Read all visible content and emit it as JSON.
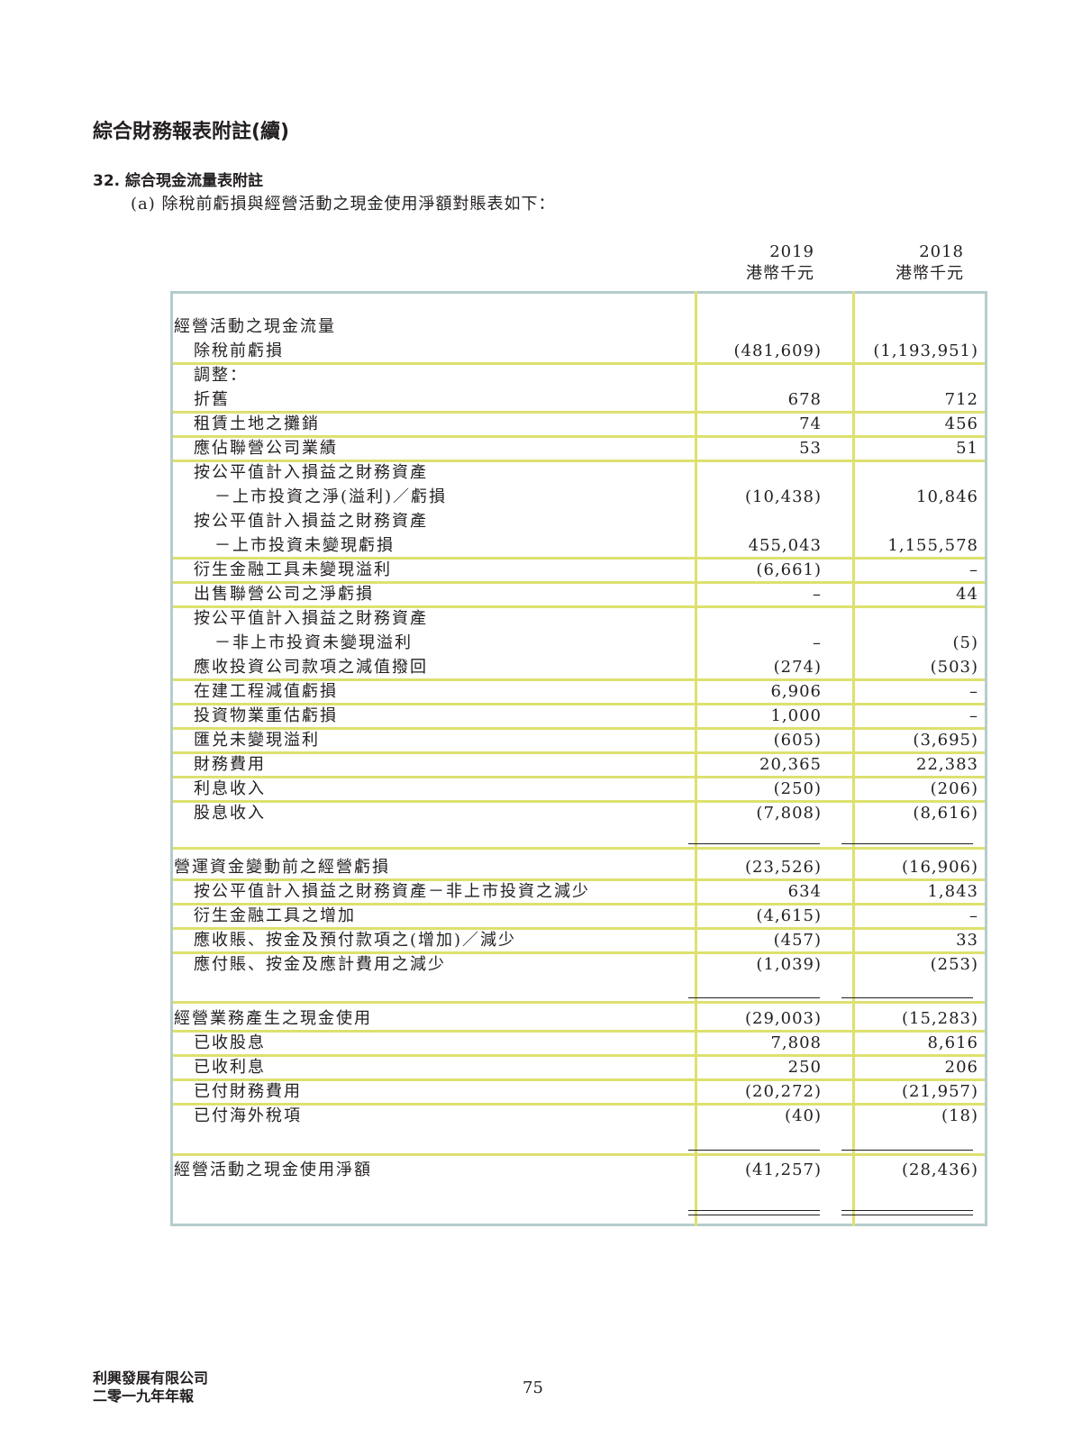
{
  "header": {
    "title": "綜合財務報表附註(續)",
    "section": "32. 綜合現金流量表附註",
    "subsection": "(a) 除稅前虧損與經營活動之現金使用淨額對賬表如下："
  },
  "columns": [
    {
      "year": "2019",
      "unit": "港幣千元"
    },
    {
      "year": "2018",
      "unit": "港幣千元"
    }
  ],
  "rows": [
    {
      "label": "經營活動之現金流量",
      "v2019": "",
      "v2018": ""
    },
    {
      "label": "除稅前虧損",
      "v2019": "(481,609)",
      "v2018": "(1,193,951)"
    },
    {
      "label": "調整：",
      "v2019": "",
      "v2018": ""
    },
    {
      "label": "折舊",
      "v2019": "678",
      "v2018": "712"
    },
    {
      "label": "租賃土地之攤銷",
      "v2019": "74",
      "v2018": "456"
    },
    {
      "label": "應佔聯營公司業績",
      "v2019": "53",
      "v2018": "51"
    },
    {
      "label": "按公平值計入損益之財務資產",
      "v2019": "",
      "v2018": ""
    },
    {
      "label": "－上市投資之淨(溢利)／虧損",
      "v2019": "(10,438)",
      "v2018": "10,846"
    },
    {
      "label": "按公平值計入損益之財務資產",
      "v2019": "",
      "v2018": ""
    },
    {
      "label": "－上市投資未變現虧損",
      "v2019": "455,043",
      "v2018": "1,155,578"
    },
    {
      "label": "衍生金融工具未變現溢利",
      "v2019": "(6,661)",
      "v2018": "–"
    },
    {
      "label": "出售聯營公司之淨虧損",
      "v2019": "–",
      "v2018": "44"
    },
    {
      "label": "按公平值計入損益之財務資產",
      "v2019": "",
      "v2018": ""
    },
    {
      "label": "－非上市投資未變現溢利",
      "v2019": "–",
      "v2018": "(5)"
    },
    {
      "label": "應收投資公司款項之減值撥回",
      "v2019": "(274)",
      "v2018": "(503)"
    },
    {
      "label": "在建工程減值虧損",
      "v2019": "6,906",
      "v2018": "–"
    },
    {
      "label": "投資物業重估虧損",
      "v2019": "1,000",
      "v2018": "–"
    },
    {
      "label": "匯兑未變現溢利",
      "v2019": "(605)",
      "v2018": "(3,695)"
    },
    {
      "label": "財務費用",
      "v2019": "20,365",
      "v2018": "22,383"
    },
    {
      "label": "利息收入",
      "v2019": "(250)",
      "v2018": "(206)"
    },
    {
      "label": "股息收入",
      "v2019": "(7,808)",
      "v2018": "(8,616)"
    },
    {
      "label": "營運資金變動前之經營虧損",
      "v2019": "(23,526)",
      "v2018": "(16,906)"
    },
    {
      "label": "按公平值計入損益之財務資產－非上市投資之減少",
      "v2019": "634",
      "v2018": "1,843"
    },
    {
      "label": "衍生金融工具之增加",
      "v2019": "(4,615)",
      "v2018": "–"
    },
    {
      "label": "應收賬、按金及預付款項之(增加)／減少",
      "v2019": "(457)",
      "v2018": "33"
    },
    {
      "label": "應付賬、按金及應計費用之減少",
      "v2019": "(1,039)",
      "v2018": "(253)"
    },
    {
      "label": "經營業務產生之現金使用",
      "v2019": "(29,003)",
      "v2018": "(15,283)"
    },
    {
      "label": "已收股息",
      "v2019": "7,808",
      "v2018": "8,616"
    },
    {
      "label": "已收利息",
      "v2019": "250",
      "v2018": "206"
    },
    {
      "label": "已付財務費用",
      "v2019": "(20,272)",
      "v2018": "(21,957)"
    },
    {
      "label": "已付海外稅項",
      "v2019": "(40)",
      "v2018": "(18)"
    },
    {
      "label": "經營活動之現金使用淨額",
      "v2019": "(41,257)",
      "v2018": "(28,436)"
    }
  ],
  "footer": {
    "company": "利興發展有限公司",
    "report": "二零一九年年報",
    "page": "75"
  }
}
